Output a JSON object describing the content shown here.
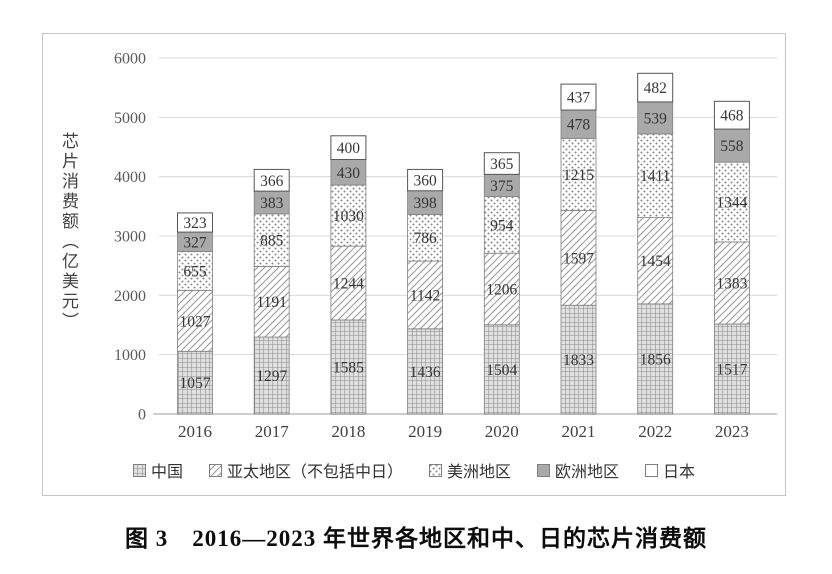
{
  "style": {
    "europe_gray": "#a9a9a9",
    "gridline": "#d9d9d9",
    "axisline": "#bdbdbd",
    "segment_border": "#7f7f7f",
    "japan_border": "#555555",
    "pattern_gray": "#8a8a8a"
  },
  "caption": "图 3　2016—2023 年世界各地区和中、日的芯片消费额",
  "chart_data": {
    "type": "bar",
    "stacked": true,
    "title": "",
    "xlabel": "",
    "ylabel": "芯片消费额（亿美元）",
    "ylim": [
      0,
      6000
    ],
    "yticks": [
      0,
      1000,
      2000,
      3000,
      4000,
      5000,
      6000
    ],
    "grid": true,
    "legend_position": "bottom",
    "categories": [
      "2016",
      "2017",
      "2018",
      "2019",
      "2020",
      "2021",
      "2022",
      "2023"
    ],
    "series": [
      {
        "key": "china",
        "name": "中国",
        "pattern": "checker",
        "values": [
          1057,
          1297,
          1585,
          1436,
          1504,
          1833,
          1856,
          1517
        ]
      },
      {
        "key": "asia-pacific",
        "name": "亚太地区（不包括中日）",
        "pattern": "diagonal",
        "values": [
          1027,
          1191,
          1244,
          1142,
          1206,
          1597,
          1454,
          1383
        ]
      },
      {
        "key": "americas",
        "name": "美洲地区",
        "pattern": "dots",
        "values": [
          655,
          885,
          1030,
          786,
          954,
          1215,
          1411,
          1344
        ]
      },
      {
        "key": "europe",
        "name": "欧洲地区",
        "pattern": "solid",
        "values": [
          327,
          383,
          430,
          398,
          375,
          478,
          539,
          558
        ]
      },
      {
        "key": "japan",
        "name": "日本",
        "pattern": "white",
        "values": [
          323,
          366,
          400,
          360,
          365,
          437,
          482,
          468
        ]
      }
    ]
  }
}
